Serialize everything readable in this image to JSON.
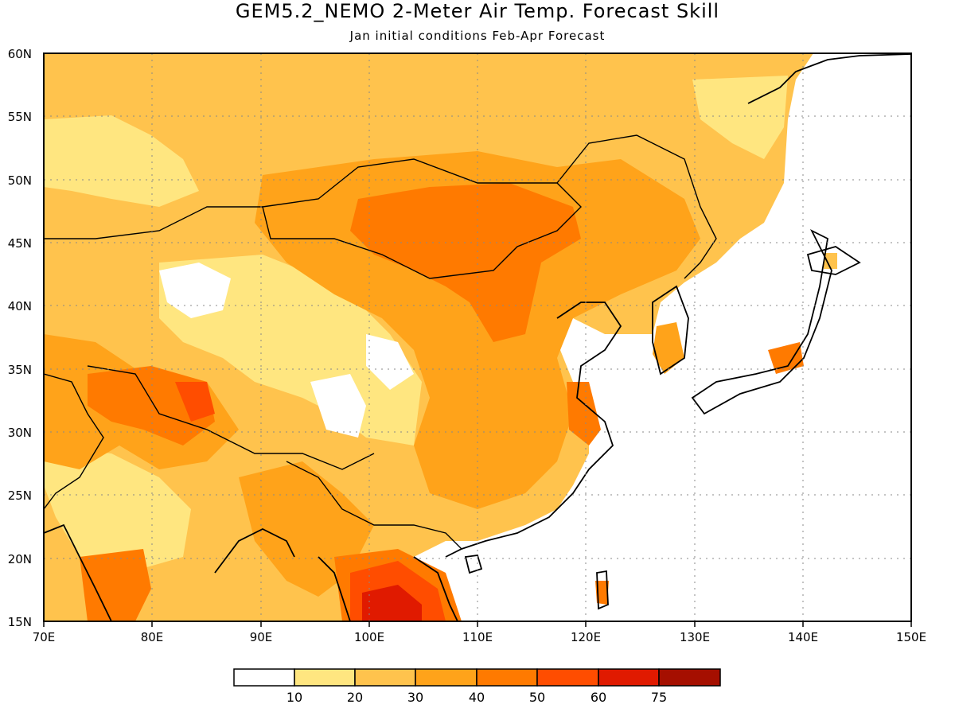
{
  "title": "GEM5.2_NEMO 2-Meter Air Temp. Forecast Skill",
  "subtitle": "Jan initial conditions  Feb-Apr Forecast",
  "map": {
    "lon_range": [
      70,
      150
    ],
    "lat_range": [
      15,
      60
    ],
    "lon_ticks": [
      "70E",
      "80E",
      "90E",
      "100E",
      "110E",
      "120E",
      "130E",
      "140E",
      "150E"
    ],
    "lat_ticks": [
      "15N",
      "20N",
      "25N",
      "30N",
      "35N",
      "40N",
      "45N",
      "50N",
      "55N",
      "60N"
    ],
    "grid": "dotted"
  },
  "colorbar": {
    "levels": [
      "10",
      "20",
      "30",
      "40",
      "50",
      "60",
      "75"
    ],
    "colors": [
      "#ffffff",
      "#ffe680",
      "#ffc34d",
      "#ffa31a",
      "#ff7a00",
      "#ff4d00",
      "#e01a00",
      "#a50f00"
    ]
  },
  "skill_regions": [
    {
      "level": 2,
      "note": "broad northern band"
    },
    {
      "level": 4,
      "note": "Mongolia / N China max"
    },
    {
      "level": 6,
      "note": "Indochina max"
    }
  ]
}
